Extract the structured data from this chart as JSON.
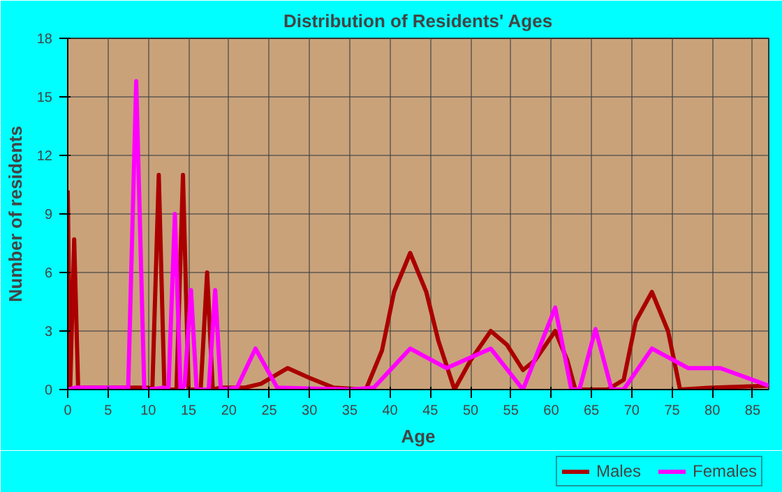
{
  "chart_data": {
    "type": "line",
    "title": "Distribution of Residents' Ages",
    "xlabel": "Age",
    "ylabel": "Number of residents",
    "xlim": [
      0,
      87
    ],
    "ylim": [
      0,
      18
    ],
    "xticks": [
      0,
      5,
      10,
      15,
      20,
      25,
      30,
      35,
      40,
      45,
      50,
      55,
      60,
      65,
      70,
      75,
      80,
      85
    ],
    "yticks": [
      0,
      3,
      6,
      9,
      12,
      15,
      18
    ],
    "grid": true,
    "legend": "bottom right",
    "marker": "none",
    "line_style": "solid",
    "series": [
      {
        "name": "Males",
        "color": "#aa0000",
        "x": [
          0,
          0.3,
          0.8,
          1.3,
          1.8,
          10,
          10.5,
          11.3,
          12,
          13.5,
          14.3,
          15,
          16.5,
          17.3,
          18,
          19,
          22,
          24,
          27.3,
          30,
          33,
          37,
          39,
          40.5,
          42.5,
          44.5,
          46,
          48,
          50,
          52.5,
          54.5,
          56.5,
          58,
          60.5,
          62,
          63,
          67,
          69,
          70.5,
          72.5,
          74.5,
          76,
          80,
          87
        ],
        "values": [
          10.2,
          0,
          7.7,
          0,
          0.1,
          0.1,
          0,
          11,
          0,
          0,
          11,
          0,
          0,
          6,
          0,
          0.1,
          0.1,
          0.3,
          1.1,
          0.6,
          0.1,
          0,
          2,
          5,
          7,
          5,
          2.5,
          0,
          1.5,
          3,
          2.3,
          1,
          1.5,
          3,
          1.5,
          0,
          0,
          0.5,
          3.5,
          5,
          3,
          0,
          0.1,
          0.2
        ]
      },
      {
        "name": "Females",
        "color": "#ff00ff",
        "x": [
          0,
          1,
          7,
          7.5,
          8.5,
          9.5,
          10,
          12,
          12.5,
          13.3,
          14,
          14.5,
          15.3,
          16,
          17.5,
          18.3,
          19,
          21,
          23.3,
          26,
          35,
          38,
          42.5,
          47,
          52.5,
          56.5,
          60.5,
          62.5,
          63.5,
          65.5,
          67.5,
          69,
          72.5,
          77,
          81,
          87
        ],
        "values": [
          0,
          0.1,
          0.1,
          0,
          15.8,
          0,
          0,
          0.1,
          0,
          9,
          0,
          0.2,
          5.1,
          0,
          0,
          5.1,
          0,
          0.1,
          2.1,
          0.1,
          0,
          0.1,
          2.1,
          1.1,
          2.1,
          0,
          4.2,
          0,
          0,
          3.1,
          0,
          0,
          2.1,
          1.1,
          1.1,
          0.2
        ]
      }
    ]
  }
}
